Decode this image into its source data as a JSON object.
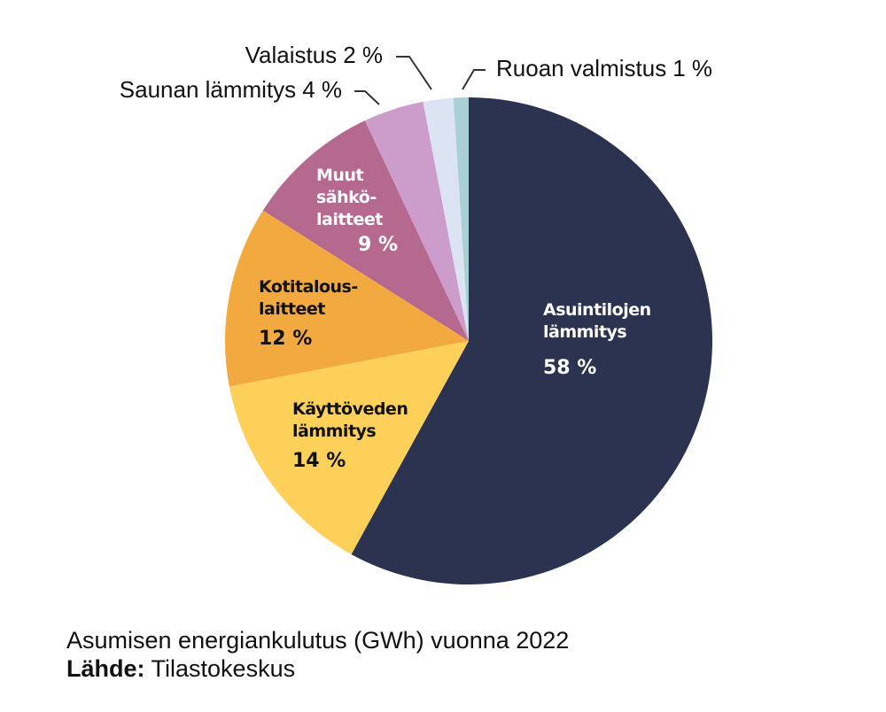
{
  "chart_data": {
    "type": "pie",
    "title": "Asumisen energiankulutus (GWh) vuonna 2022",
    "source_label": "Lähde:",
    "source": "Tilastokeskus",
    "categories": [
      "Asuintilojen lämmitys",
      "Käyttöveden lämmitys",
      "Kotitalous-laitteet",
      "Muut sähkö-laitteet",
      "Saunan lämmitys",
      "Valaistus",
      "Ruoan valmistus"
    ],
    "values": [
      58,
      14,
      12,
      9,
      4,
      2,
      1
    ],
    "value_labels": [
      "58 %",
      "14 %",
      "12 %",
      "9 %",
      "4 %",
      "2 %",
      "1 %"
    ],
    "colors": [
      "#2b3350",
      "#fdd05a",
      "#f2aa40",
      "#b5698f",
      "#cc9dcb",
      "#dce4f4",
      "#a9d0d4"
    ]
  }
}
